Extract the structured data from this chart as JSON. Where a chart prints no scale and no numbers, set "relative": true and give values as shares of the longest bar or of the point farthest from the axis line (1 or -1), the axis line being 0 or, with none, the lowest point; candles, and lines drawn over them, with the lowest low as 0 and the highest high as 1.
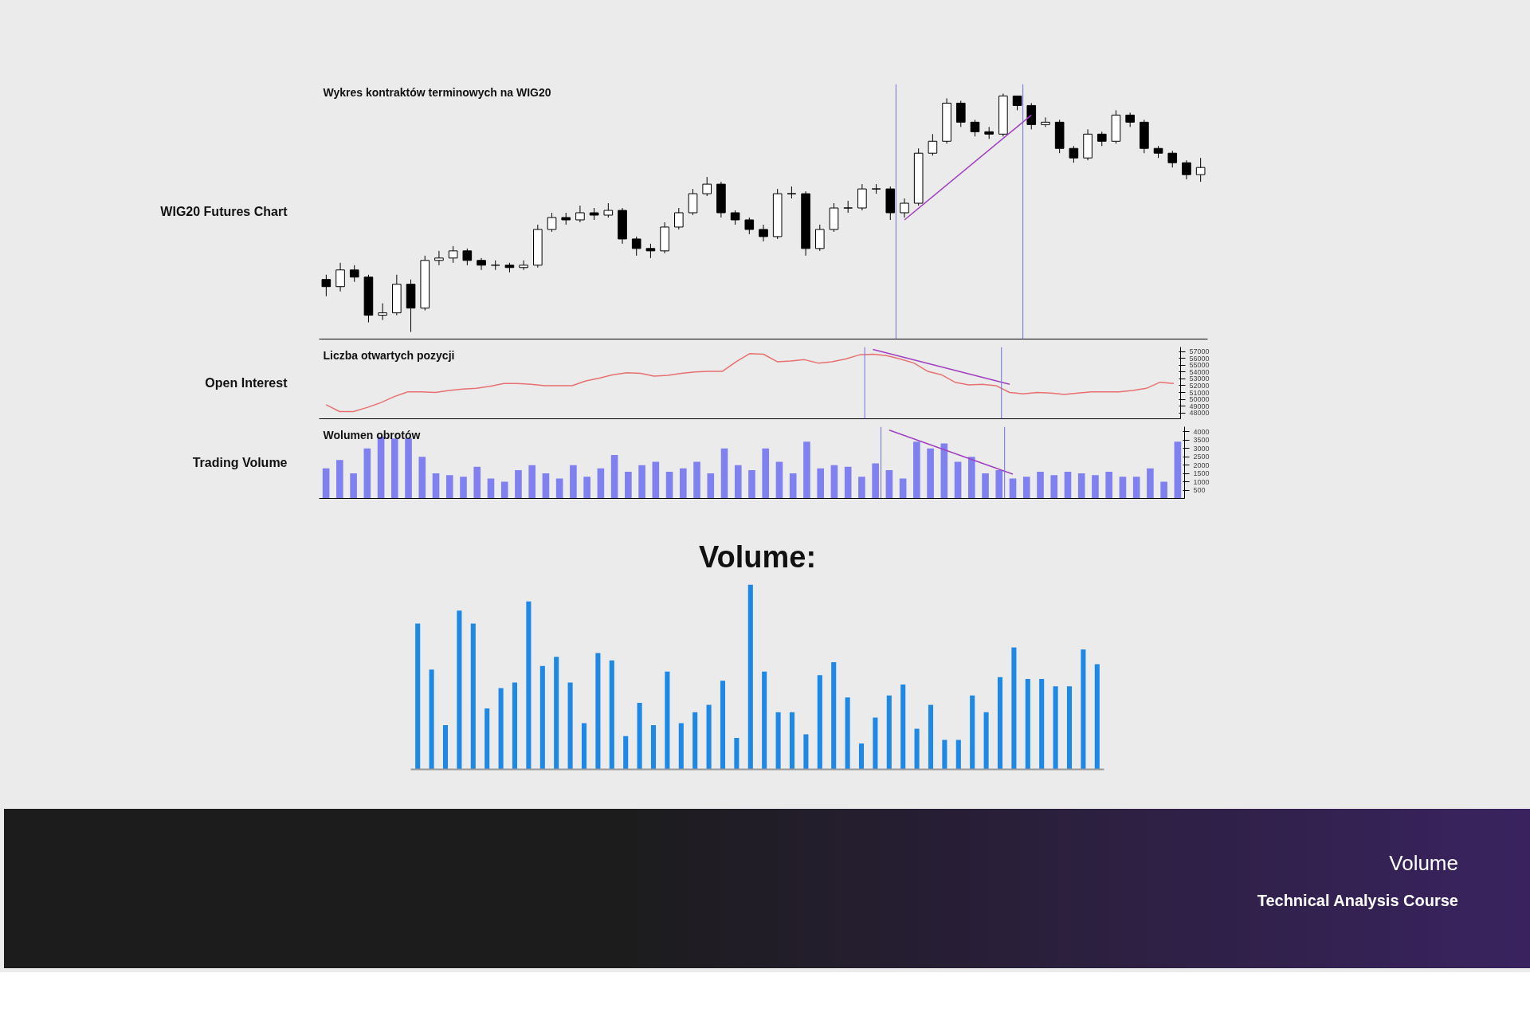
{
  "chart_data": [
    {
      "type": "candlestick",
      "title": "WIG20 Futures Chart",
      "subtitle": "Wykres kontraktów terminowych na WIG20",
      "relative": true,
      "grid": false,
      "tick_labels": false,
      "categories": [
        null,
        null,
        null,
        null,
        null,
        null,
        null,
        null,
        null,
        null,
        null,
        null,
        null,
        null,
        null,
        null,
        null,
        null,
        null,
        null,
        null,
        null,
        null,
        null,
        null,
        null,
        null,
        null,
        null,
        null,
        null,
        null,
        null,
        null,
        null,
        null,
        null,
        null,
        null,
        null,
        null,
        null,
        null,
        null,
        null,
        null,
        null,
        null,
        null,
        null,
        null,
        null,
        null,
        null,
        null,
        null,
        null,
        null,
        null,
        null,
        null,
        null,
        null
      ],
      "ohlc": [
        [
          0.22,
          0.24,
          0.15,
          0.19
        ],
        [
          0.19,
          0.29,
          0.17,
          0.26
        ],
        [
          0.26,
          0.28,
          0.21,
          0.23
        ],
        [
          0.23,
          0.24,
          0.04,
          0.07
        ],
        [
          0.07,
          0.12,
          0.05,
          0.08
        ],
        [
          0.08,
          0.24,
          0.07,
          0.2
        ],
        [
          0.2,
          0.22,
          0.0,
          0.1
        ],
        [
          0.1,
          0.32,
          0.09,
          0.3
        ],
        [
          0.3,
          0.34,
          0.28,
          0.31
        ],
        [
          0.31,
          0.36,
          0.29,
          0.34
        ],
        [
          0.34,
          0.35,
          0.28,
          0.3
        ],
        [
          0.3,
          0.31,
          0.26,
          0.28
        ],
        [
          0.28,
          0.3,
          0.26,
          0.28
        ],
        [
          0.28,
          0.29,
          0.25,
          0.27
        ],
        [
          0.27,
          0.3,
          0.26,
          0.28
        ],
        [
          0.28,
          0.45,
          0.27,
          0.43
        ],
        [
          0.43,
          0.5,
          0.42,
          0.48
        ],
        [
          0.48,
          0.5,
          0.45,
          0.47
        ],
        [
          0.47,
          0.53,
          0.46,
          0.5
        ],
        [
          0.5,
          0.52,
          0.47,
          0.49
        ],
        [
          0.49,
          0.54,
          0.48,
          0.51
        ],
        [
          0.51,
          0.52,
          0.37,
          0.39
        ],
        [
          0.39,
          0.4,
          0.32,
          0.35
        ],
        [
          0.35,
          0.37,
          0.31,
          0.34
        ],
        [
          0.34,
          0.46,
          0.33,
          0.44
        ],
        [
          0.44,
          0.52,
          0.43,
          0.5
        ],
        [
          0.5,
          0.6,
          0.49,
          0.58
        ],
        [
          0.58,
          0.65,
          0.57,
          0.62
        ],
        [
          0.62,
          0.63,
          0.48,
          0.5
        ],
        [
          0.5,
          0.51,
          0.45,
          0.47
        ],
        [
          0.47,
          0.48,
          0.41,
          0.43
        ],
        [
          0.43,
          0.45,
          0.38,
          0.4
        ],
        [
          0.4,
          0.6,
          0.39,
          0.58
        ],
        [
          0.58,
          0.61,
          0.56,
          0.58
        ],
        [
          0.58,
          0.59,
          0.32,
          0.35
        ],
        [
          0.35,
          0.45,
          0.34,
          0.43
        ],
        [
          0.43,
          0.54,
          0.42,
          0.52
        ],
        [
          0.52,
          0.55,
          0.5,
          0.52
        ],
        [
          0.52,
          0.62,
          0.51,
          0.6
        ],
        [
          0.6,
          0.62,
          0.58,
          0.6
        ],
        [
          0.6,
          0.61,
          0.47,
          0.5
        ],
        [
          0.5,
          0.56,
          0.48,
          0.54
        ],
        [
          0.54,
          0.77,
          0.53,
          0.75
        ],
        [
          0.75,
          0.83,
          0.74,
          0.8
        ],
        [
          0.8,
          0.98,
          0.79,
          0.96
        ],
        [
          0.96,
          0.97,
          0.86,
          0.88
        ],
        [
          0.88,
          0.89,
          0.82,
          0.84
        ],
        [
          0.84,
          0.86,
          0.81,
          0.83
        ],
        [
          0.83,
          1.0,
          0.82,
          0.99
        ],
        [
          0.99,
          0.99,
          0.93,
          0.95
        ],
        [
          0.95,
          0.96,
          0.85,
          0.87
        ],
        [
          0.87,
          0.9,
          0.86,
          0.88
        ],
        [
          0.88,
          0.89,
          0.75,
          0.77
        ],
        [
          0.77,
          0.78,
          0.71,
          0.73
        ],
        [
          0.73,
          0.85,
          0.72,
          0.83
        ],
        [
          0.83,
          0.84,
          0.78,
          0.8
        ],
        [
          0.8,
          0.93,
          0.79,
          0.91
        ],
        [
          0.91,
          0.92,
          0.86,
          0.88
        ],
        [
          0.88,
          0.89,
          0.75,
          0.77
        ],
        [
          0.77,
          0.78,
          0.73,
          0.75
        ],
        [
          0.75,
          0.76,
          0.69,
          0.71
        ],
        [
          0.71,
          0.72,
          0.64,
          0.66
        ],
        [
          0.66,
          0.73,
          0.63,
          0.69
        ]
      ],
      "series": [
        {
          "type": "line",
          "color": "#a040c0",
          "values": [
            null,
            null,
            null,
            null,
            null,
            null,
            null,
            null,
            null,
            null,
            null,
            null,
            null,
            null,
            null,
            null,
            null,
            null,
            null,
            null,
            null,
            null,
            null,
            null,
            null,
            null,
            null,
            null,
            null,
            null,
            null,
            null,
            null,
            null,
            null,
            null,
            null,
            null,
            null,
            null,
            null,
            0.47,
            null,
            null,
            null,
            null,
            null,
            null,
            null,
            null,
            0.91,
            null,
            null,
            null,
            null,
            null,
            null,
            null,
            null,
            null,
            null,
            null,
            null
          ]
        }
      ]
    },
    {
      "type": "line",
      "title": "Open Interest",
      "subtitle": "Liczba otwartych pozycji",
      "grid": false,
      "tick_labels": "y",
      "categories": [
        null,
        null,
        null,
        null,
        null,
        null,
        null,
        null,
        null,
        null,
        null,
        null,
        null,
        null,
        null,
        null,
        null,
        null,
        null,
        null,
        null,
        null,
        null,
        null,
        null,
        null,
        null,
        null,
        null,
        null,
        null,
        null,
        null,
        null,
        null,
        null,
        null,
        null,
        null,
        null,
        null,
        null,
        null,
        null,
        null,
        null,
        null,
        null,
        null,
        null,
        null,
        null,
        null,
        null,
        null,
        null,
        null,
        null,
        null,
        null,
        null,
        null,
        null
      ],
      "ylim": [
        47150,
        57650
      ],
      "yticks": [
        48000,
        49000,
        50000,
        51000,
        52000,
        53000,
        54000,
        55000,
        56000,
        57000
      ],
      "series": [
        {
          "color": "#e87070",
          "values": [
            49200,
            48200,
            48200,
            48800,
            49500,
            50400,
            51100,
            51100,
            51000,
            51300,
            51500,
            51600,
            51900,
            52300,
            52300,
            52200,
            52000,
            52000,
            52000,
            52700,
            53100,
            53600,
            53900,
            53800,
            53400,
            53500,
            53800,
            54000,
            54100,
            54100,
            55500,
            56700,
            56600,
            55500,
            55600,
            55800,
            55300,
            55500,
            55900,
            56500,
            56600,
            56400,
            55900,
            55300,
            54100,
            53600,
            52500,
            52100,
            52200,
            52000,
            51000,
            50800,
            51000,
            50900,
            50700,
            50900,
            51100,
            51100,
            51100,
            51300,
            51600,
            52500,
            52300
          ]
        },
        {
          "color": "#a040c0",
          "values": [
            null,
            null,
            null,
            null,
            null,
            null,
            null,
            null,
            null,
            null,
            null,
            null,
            null,
            null,
            null,
            null,
            null,
            null,
            null,
            null,
            null,
            null,
            null,
            null,
            null,
            null,
            null,
            null,
            null,
            null,
            null,
            null,
            null,
            null,
            null,
            null,
            null,
            null,
            null,
            null,
            57300,
            null,
            null,
            null,
            null,
            null,
            null,
            null,
            null,
            null,
            52200,
            null,
            null,
            null,
            null,
            null,
            null,
            null,
            null,
            null,
            null,
            null,
            null
          ]
        }
      ]
    },
    {
      "type": "bar",
      "title": "Trading Volume",
      "subtitle": "Wolumen obrotów",
      "grid": false,
      "tick_labels": "y",
      "categories": [
        null,
        null,
        null,
        null,
        null,
        null,
        null,
        null,
        null,
        null,
        null,
        null,
        null,
        null,
        null,
        null,
        null,
        null,
        null,
        null,
        null,
        null,
        null,
        null,
        null,
        null,
        null,
        null,
        null,
        null,
        null,
        null,
        null,
        null,
        null,
        null,
        null,
        null,
        null,
        null,
        null,
        null,
        null,
        null,
        null,
        null,
        null,
        null,
        null,
        null,
        null,
        null,
        null,
        null,
        null,
        null,
        null,
        null,
        null,
        null,
        null,
        null,
        null
      ],
      "ylim": [
        0,
        4300
      ],
      "yticks": [
        500,
        1000,
        1500,
        2000,
        2500,
        3000,
        3500,
        4000
      ],
      "color": "#8080f0",
      "values": [
        1800,
        2300,
        1500,
        3000,
        3700,
        3600,
        3600,
        2500,
        1500,
        1400,
        1300,
        1900,
        1200,
        1000,
        1700,
        2000,
        1500,
        1200,
        2000,
        1300,
        1800,
        2600,
        1600,
        2000,
        2200,
        1600,
        1800,
        2200,
        1500,
        3000,
        2000,
        1700,
        3000,
        2200,
        1500,
        3400,
        1800,
        2000,
        1900,
        1300,
        2100,
        1700,
        1200,
        3400,
        3000,
        3300,
        2200,
        2500,
        1500,
        1700,
        1200,
        1300,
        1600,
        1400,
        1600,
        1500,
        1400,
        1600,
        1300,
        1300,
        1800,
        1000,
        3400
      ],
      "series": [
        {
          "type": "line",
          "color": "#a040c0",
          "values": [
            null,
            null,
            null,
            null,
            null,
            null,
            null,
            null,
            null,
            null,
            null,
            null,
            null,
            null,
            null,
            null,
            null,
            null,
            null,
            null,
            null,
            null,
            null,
            null,
            null,
            null,
            null,
            null,
            null,
            null,
            null,
            null,
            null,
            null,
            null,
            null,
            null,
            null,
            null,
            null,
            null,
            4100,
            null,
            null,
            null,
            null,
            null,
            null,
            null,
            null,
            1460,
            null,
            null,
            null,
            null,
            null,
            null,
            null,
            null,
            null,
            null,
            null,
            null
          ]
        }
      ]
    },
    {
      "type": "bar",
      "title": "Volume:",
      "relative": true,
      "grid": false,
      "color": "#1e88e5",
      "categories": [
        null,
        null,
        null,
        null,
        null,
        null,
        null,
        null,
        null,
        null,
        null,
        null,
        null,
        null,
        null,
        null,
        null,
        null,
        null,
        null,
        null,
        null,
        null,
        null,
        null,
        null,
        null,
        null,
        null,
        null,
        null,
        null,
        null,
        null,
        null,
        null,
        null,
        null,
        null,
        null,
        null,
        null,
        null,
        null,
        null,
        null,
        null,
        null,
        null,
        null
      ],
      "values": [
        0.79,
        0.54,
        0.24,
        0.86,
        0.79,
        0.33,
        0.44,
        0.47,
        0.91,
        0.56,
        0.61,
        0.47,
        0.25,
        0.63,
        0.59,
        0.18,
        0.36,
        0.24,
        0.53,
        0.25,
        0.31,
        0.35,
        0.48,
        0.17,
        1.0,
        0.53,
        0.31,
        0.31,
        0.19,
        0.51,
        0.58,
        0.39,
        0.14,
        0.28,
        0.4,
        0.46,
        0.22,
        0.35,
        0.16,
        0.16,
        0.4,
        0.31,
        0.5,
        0.66,
        0.49,
        0.49,
        0.45,
        0.45,
        0.65,
        0.57
      ],
      "annotations": [
        "Volume",
        "Technical Analysis Course"
      ]
    }
  ]
}
